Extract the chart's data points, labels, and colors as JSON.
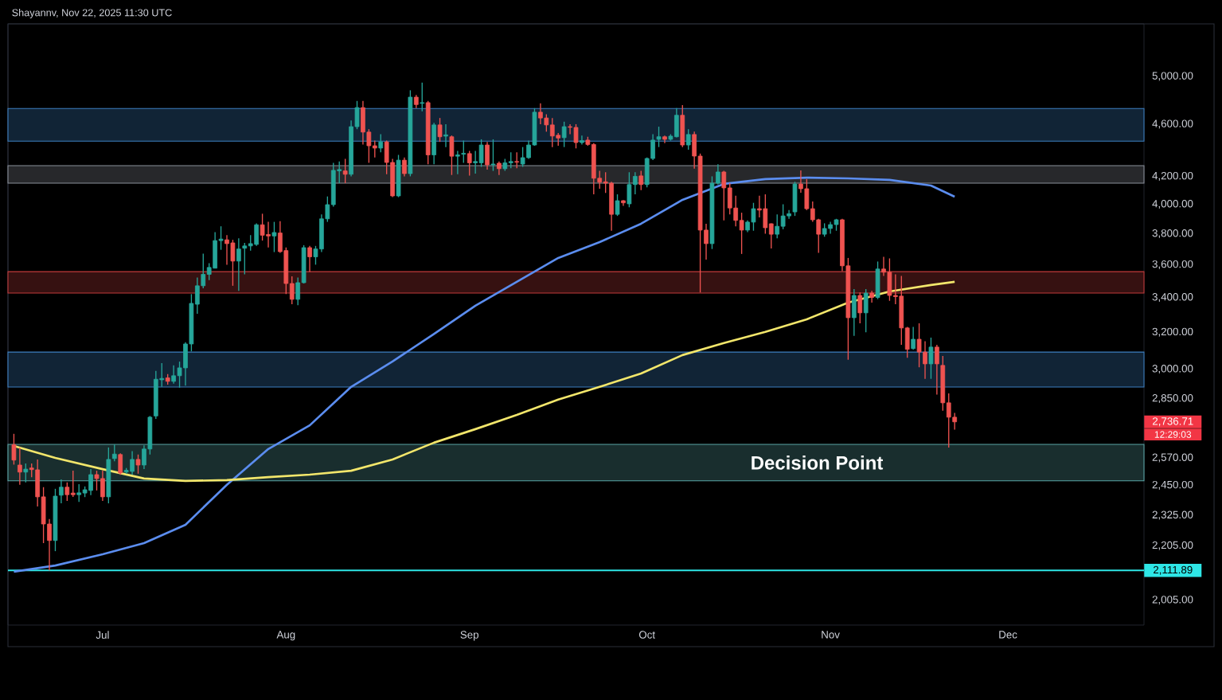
{
  "chart_data": {
    "type": "candlestick",
    "annotations": [
      "Shayannv, Nov 22, 2025 11:30 UTC",
      "2,736.71",
      "12:29:03"
    ],
    "x": [
      "2025-06-16",
      "2025-06-17",
      "2025-06-18",
      "2025-06-19",
      "2025-06-20",
      "2025-06-21",
      "2025-06-22",
      "2025-06-23",
      "2025-06-24",
      "2025-06-25",
      "2025-06-26",
      "2025-06-27",
      "2025-06-28",
      "2025-06-29",
      "2025-06-30",
      "2025-07-01",
      "2025-07-02",
      "2025-07-03",
      "2025-07-04",
      "2025-07-05",
      "2025-07-06",
      "2025-07-07",
      "2025-07-08",
      "2025-07-09",
      "2025-07-10",
      "2025-07-11",
      "2025-07-12",
      "2025-07-13",
      "2025-07-14",
      "2025-07-15",
      "2025-07-16",
      "2025-07-17",
      "2025-07-18",
      "2025-07-19",
      "2025-07-20",
      "2025-07-21",
      "2025-07-22",
      "2025-07-23",
      "2025-07-24",
      "2025-07-25",
      "2025-07-26",
      "2025-07-27",
      "2025-07-28",
      "2025-07-29",
      "2025-07-30",
      "2025-07-31",
      "2025-08-01",
      "2025-08-02",
      "2025-08-03",
      "2025-08-04",
      "2025-08-05",
      "2025-08-06",
      "2025-08-07",
      "2025-08-08",
      "2025-08-09",
      "2025-08-10",
      "2025-08-11",
      "2025-08-12",
      "2025-08-13",
      "2025-08-14",
      "2025-08-15",
      "2025-08-16",
      "2025-08-17",
      "2025-08-18",
      "2025-08-19",
      "2025-08-20",
      "2025-08-21",
      "2025-08-22",
      "2025-08-23",
      "2025-08-24",
      "2025-08-25",
      "2025-08-26",
      "2025-08-27",
      "2025-08-28",
      "2025-08-29",
      "2025-08-30",
      "2025-08-31",
      "2025-09-01",
      "2025-09-02",
      "2025-09-03",
      "2025-09-04",
      "2025-09-05",
      "2025-09-06",
      "2025-09-07",
      "2025-09-08",
      "2025-09-09",
      "2025-09-10",
      "2025-09-11",
      "2025-09-12",
      "2025-09-13",
      "2025-09-14",
      "2025-09-15",
      "2025-09-16",
      "2025-09-17",
      "2025-09-18",
      "2025-09-19",
      "2025-09-20",
      "2025-09-21",
      "2025-09-22",
      "2025-09-23",
      "2025-09-24",
      "2025-09-25",
      "2025-09-26",
      "2025-09-27",
      "2025-09-28",
      "2025-09-29",
      "2025-09-30",
      "2025-10-01",
      "2025-10-02",
      "2025-10-03",
      "2025-10-04",
      "2025-10-05",
      "2025-10-06",
      "2025-10-07",
      "2025-10-08",
      "2025-10-09",
      "2025-10-10",
      "2025-10-11",
      "2025-10-12",
      "2025-10-13",
      "2025-10-14",
      "2025-10-15",
      "2025-10-16",
      "2025-10-17",
      "2025-10-18",
      "2025-10-19",
      "2025-10-20",
      "2025-10-21",
      "2025-10-22",
      "2025-10-23",
      "2025-10-24",
      "2025-10-25",
      "2025-10-26",
      "2025-10-27",
      "2025-10-28",
      "2025-10-29",
      "2025-10-30",
      "2025-10-31",
      "2025-11-01",
      "2025-11-02",
      "2025-11-03",
      "2025-11-04",
      "2025-11-05",
      "2025-11-06",
      "2025-11-07",
      "2025-11-08",
      "2025-11-09",
      "2025-11-10",
      "2025-11-11",
      "2025-11-12",
      "2025-11-13",
      "2025-11-14",
      "2025-11-15",
      "2025-11-16",
      "2025-11-17",
      "2025-11-18",
      "2025-11-19",
      "2025-11-20",
      "2025-11-21",
      "2025-11-22"
    ],
    "ohlc": [
      [
        2630,
        2680,
        2540,
        2560
      ],
      [
        2538,
        2617,
        2452,
        2507
      ],
      [
        2507,
        2545,
        2462,
        2520
      ],
      [
        2525,
        2545,
        2485,
        2518
      ],
      [
        2517,
        2563,
        2361,
        2401
      ],
      [
        2401,
        2442,
        2215,
        2290
      ],
      [
        2290,
        2310,
        2112,
        2225
      ],
      [
        2225,
        2435,
        2184,
        2404
      ],
      [
        2408,
        2475,
        2374,
        2442
      ],
      [
        2442,
        2462,
        2384,
        2410
      ],
      [
        2417,
        2513,
        2401,
        2410
      ],
      [
        2410,
        2455,
        2380,
        2418
      ],
      [
        2417,
        2445,
        2400,
        2431
      ],
      [
        2428,
        2520,
        2408,
        2496
      ],
      [
        2496,
        2513,
        2428,
        2479
      ],
      [
        2479,
        2513,
        2384,
        2401
      ],
      [
        2401,
        2617,
        2374,
        2563
      ],
      [
        2567,
        2630,
        2555,
        2587
      ],
      [
        2585,
        2590,
        2495,
        2503
      ],
      [
        2507,
        2525,
        2500,
        2515
      ],
      [
        2510,
        2600,
        2496,
        2563
      ],
      [
        2563,
        2585,
        2500,
        2538
      ],
      [
        2538,
        2627,
        2520,
        2610
      ],
      [
        2610,
        2765,
        2585,
        2759
      ],
      [
        2765,
        2991,
        2751,
        2948
      ],
      [
        2945,
        3032,
        2909,
        2952
      ],
      [
        2955,
        2975,
        2920,
        2937
      ],
      [
        2937,
        3020,
        2925,
        2966
      ],
      [
        2966,
        3040,
        2905,
        3007
      ],
      [
        3007,
        3145,
        2915,
        3135
      ],
      [
        3135,
        3420,
        3095,
        3365
      ],
      [
        3360,
        3520,
        3305,
        3470
      ],
      [
        3470,
        3670,
        3455,
        3540
      ],
      [
        3540,
        3610,
        3505,
        3583
      ],
      [
        3578,
        3810,
        3578,
        3755
      ],
      [
        3755,
        3850,
        3695,
        3765
      ],
      [
        3760,
        3790,
        3600,
        3735
      ],
      [
        3740,
        3760,
        3470,
        3623
      ],
      [
        3623,
        3770,
        3440,
        3700
      ],
      [
        3705,
        3740,
        3540,
        3720
      ],
      [
        3720,
        3790,
        3690,
        3735
      ],
      [
        3730,
        3870,
        3720,
        3860
      ],
      [
        3860,
        3935,
        3755,
        3790
      ],
      [
        3795,
        3880,
        3710,
        3785
      ],
      [
        3785,
        3880,
        3680,
        3808
      ],
      [
        3805,
        3885,
        3675,
        3683
      ],
      [
        3690,
        3710,
        3420,
        3484
      ],
      [
        3484,
        3528,
        3360,
        3389
      ],
      [
        3389,
        3520,
        3355,
        3489
      ],
      [
        3489,
        3725,
        3484,
        3709
      ],
      [
        3709,
        3720,
        3555,
        3650
      ],
      [
        3650,
        3720,
        3600,
        3700
      ],
      [
        3700,
        3930,
        3680,
        3900
      ],
      [
        3900,
        4055,
        3880,
        3998
      ],
      [
        3998,
        4300,
        3985,
        4244
      ],
      [
        4240,
        4310,
        4150,
        4250
      ],
      [
        4240,
        4330,
        4150,
        4215
      ],
      [
        4215,
        4630,
        4200,
        4580
      ],
      [
        4580,
        4790,
        4560,
        4735
      ],
      [
        4735,
        4790,
        4440,
        4537
      ],
      [
        4537,
        4560,
        4300,
        4430
      ],
      [
        4430,
        4470,
        4340,
        4412
      ],
      [
        4412,
        4520,
        4380,
        4460
      ],
      [
        4460,
        4470,
        4215,
        4303
      ],
      [
        4303,
        4330,
        4050,
        4059
      ],
      [
        4059,
        4360,
        4050,
        4320
      ],
      [
        4320,
        4340,
        4200,
        4220
      ],
      [
        4220,
        4880,
        4200,
        4822
      ],
      [
        4822,
        4840,
        4730,
        4760
      ],
      [
        4770,
        4945,
        4705,
        4776
      ],
      [
        4776,
        4790,
        4290,
        4360
      ],
      [
        4360,
        4610,
        4290,
        4594
      ],
      [
        4594,
        4650,
        4460,
        4500
      ],
      [
        4505,
        4600,
        4420,
        4515
      ],
      [
        4500,
        4510,
        4210,
        4350
      ],
      [
        4350,
        4390,
        4215,
        4360
      ],
      [
        4365,
        4470,
        4300,
        4372
      ],
      [
        4370,
        4390,
        4205,
        4300
      ],
      [
        4300,
        4390,
        4220,
        4310
      ],
      [
        4300,
        4480,
        4270,
        4436
      ],
      [
        4436,
        4460,
        4250,
        4285
      ],
      [
        4285,
        4480,
        4240,
        4291
      ],
      [
        4297,
        4310,
        4210,
        4256
      ],
      [
        4256,
        4330,
        4240,
        4300
      ],
      [
        4300,
        4380,
        4260,
        4310
      ],
      [
        4310,
        4380,
        4260,
        4305
      ],
      [
        4291,
        4420,
        4270,
        4339
      ],
      [
        4339,
        4470,
        4330,
        4436
      ],
      [
        4436,
        4730,
        4430,
        4697
      ],
      [
        4697,
        4770,
        4600,
        4650
      ],
      [
        4650,
        4680,
        4540,
        4594
      ],
      [
        4594,
        4650,
        4420,
        4506
      ],
      [
        4512,
        4530,
        4430,
        4490
      ],
      [
        4493,
        4620,
        4420,
        4580
      ],
      [
        4580,
        4600,
        4520,
        4575
      ],
      [
        4574,
        4600,
        4410,
        4455
      ],
      [
        4455,
        4510,
        4440,
        4470
      ],
      [
        4474,
        4500,
        4430,
        4440
      ],
      [
        4440,
        4450,
        4070,
        4186
      ],
      [
        4186,
        4240,
        4110,
        4157
      ],
      [
        4160,
        4230,
        4080,
        4150
      ],
      [
        4150,
        4160,
        3820,
        3931
      ],
      [
        3931,
        4070,
        3920,
        4025
      ],
      [
        4025,
        4030,
        3990,
        4010
      ],
      [
        4003,
        4230,
        3980,
        4140
      ],
      [
        4140,
        4230,
        4070,
        4200
      ],
      [
        4203,
        4240,
        4100,
        4140
      ],
      [
        4140,
        4340,
        4120,
        4333
      ],
      [
        4333,
        4520,
        4320,
        4474
      ],
      [
        4480,
        4580,
        4420,
        4500
      ],
      [
        4500,
        4510,
        4450,
        4480
      ],
      [
        4480,
        4520,
        4470,
        4505
      ],
      [
        4500,
        4730,
        4495,
        4672
      ],
      [
        4672,
        4755,
        4420,
        4436
      ],
      [
        4436,
        4560,
        4400,
        4518
      ],
      [
        4518,
        4540,
        4256,
        4351
      ],
      [
        4351,
        4370,
        3430,
        3824
      ],
      [
        3824,
        3867,
        3633,
        3735
      ],
      [
        3735,
        4200,
        3700,
        4150
      ],
      [
        4150,
        4290,
        4140,
        4232
      ],
      [
        4232,
        4240,
        3890,
        4116
      ],
      [
        4116,
        4150,
        3930,
        3975
      ],
      [
        3975,
        4060,
        3850,
        3890
      ],
      [
        3890,
        3942,
        3668,
        3824
      ],
      [
        3824,
        3890,
        3810,
        3878
      ],
      [
        3878,
        4010,
        3820,
        3970
      ],
      [
        3970,
        4060,
        3910,
        3960
      ],
      [
        3970,
        4070,
        3800,
        3840
      ],
      [
        3867,
        3870,
        3704,
        3797
      ],
      [
        3797,
        3930,
        3770,
        3850
      ],
      [
        3850,
        4000,
        3830,
        3920
      ],
      [
        3920,
        3960,
        3900,
        3935
      ],
      [
        3948,
        4160,
        3920,
        4144
      ],
      [
        4144,
        4244,
        4082,
        4110
      ],
      [
        4110,
        4180,
        3960,
        3970
      ],
      [
        3970,
        4020,
        3880,
        3894
      ],
      [
        3894,
        3900,
        3676,
        3797
      ],
      [
        3797,
        3870,
        3780,
        3835
      ],
      [
        3835,
        3880,
        3800,
        3861
      ],
      [
        3861,
        3900,
        3820,
        3894
      ],
      [
        3894,
        3900,
        3560,
        3593
      ],
      [
        3593,
        3643,
        3050,
        3282
      ],
      [
        3282,
        3450,
        3180,
        3412
      ],
      [
        3412,
        3430,
        3250,
        3310
      ],
      [
        3310,
        3450,
        3200,
        3426
      ],
      [
        3426,
        3440,
        3370,
        3400
      ],
      [
        3400,
        3620,
        3390,
        3573
      ],
      [
        3573,
        3650,
        3530,
        3553
      ],
      [
        3553,
        3640,
        3380,
        3412
      ],
      [
        3412,
        3540,
        3360,
        3405
      ],
      [
        3408,
        3530,
        3130,
        3224
      ],
      [
        3224,
        3230,
        3060,
        3106
      ],
      [
        3110,
        3230,
        3105,
        3161
      ],
      [
        3161,
        3250,
        3010,
        3091
      ],
      [
        3091,
        3150,
        2950,
        3028
      ],
      [
        3028,
        3170,
        2950,
        3118
      ],
      [
        3118,
        3130,
        2870,
        3028
      ],
      [
        3020,
        3070,
        2790,
        2829
      ],
      [
        2829,
        2876,
        2617,
        2759
      ],
      [
        2759,
        2780,
        2700,
        2736.71
      ]
    ],
    "series": [
      {
        "type": "line",
        "color": "#5b8def",
        "x": [
          "2025-06-16",
          "2025-06-23",
          "2025-07-01",
          "2025-07-08",
          "2025-07-15",
          "2025-07-22",
          "2025-07-29",
          "2025-08-05",
          "2025-08-12",
          "2025-08-19",
          "2025-08-26",
          "2025-09-02",
          "2025-09-09",
          "2025-09-16",
          "2025-09-23",
          "2025-09-30",
          "2025-10-07",
          "2025-10-14",
          "2025-10-21",
          "2025-10-28",
          "2025-11-04",
          "2025-11-11",
          "2025-11-18",
          "2025-11-22"
        ],
        "values": [
          2107,
          2130,
          2172,
          2215,
          2287,
          2452,
          2610,
          2720,
          2909,
          3041,
          3190,
          3352,
          3494,
          3643,
          3745,
          3867,
          4031,
          4145,
          4180,
          4190,
          4185,
          4174,
          4133,
          4053
        ]
      },
      {
        "type": "line",
        "color": "#f2e66b",
        "x": [
          "2025-06-16",
          "2025-06-23",
          "2025-07-01",
          "2025-07-08",
          "2025-07-15",
          "2025-07-22",
          "2025-07-29",
          "2025-08-05",
          "2025-08-12",
          "2025-08-19",
          "2025-08-26",
          "2025-09-02",
          "2025-09-09",
          "2025-09-16",
          "2025-09-23",
          "2025-09-30",
          "2025-10-07",
          "2025-10-14",
          "2025-10-21",
          "2025-10-28",
          "2025-11-04",
          "2025-11-11",
          "2025-11-18",
          "2025-11-22"
        ],
        "values": [
          2624,
          2570,
          2520,
          2479,
          2469,
          2472,
          2485,
          2496,
          2513,
          2563,
          2639,
          2702,
          2770,
          2845,
          2909,
          2978,
          3075,
          3140,
          3202,
          3273,
          3370,
          3436,
          3475,
          3494
        ]
      }
    ],
    "xlim": [
      "2025-06-15",
      "2025-12-24"
    ],
    "xticks": [
      {
        "value": "2025-07-01",
        "label": "Jul"
      },
      {
        "value": "2025-08-01",
        "label": "Aug"
      },
      {
        "value": "2025-09-01",
        "label": "Sep"
      },
      {
        "value": "2025-10-01",
        "label": "Oct"
      },
      {
        "value": "2025-11-01",
        "label": "Nov"
      },
      {
        "value": "2025-12-01",
        "label": "Dec"
      }
    ],
    "ylim": [
      1920,
      5480
    ],
    "log": true,
    "yticks": [
      {
        "value": 2005,
        "label": "2,005.00"
      },
      {
        "value": 2205,
        "label": "2,205.00"
      },
      {
        "value": 2325,
        "label": "2,325.00"
      },
      {
        "value": 2450,
        "label": "2,450.00"
      },
      {
        "value": 2570,
        "label": "2,570.00"
      },
      {
        "value": 2850,
        "label": "2,850.00"
      },
      {
        "value": 3000,
        "label": "3,000.00"
      },
      {
        "value": 3200,
        "label": "3,200.00"
      },
      {
        "value": 3400,
        "label": "3,400.00"
      },
      {
        "value": 3600,
        "label": "3,600.00"
      },
      {
        "value": 3800,
        "label": "3,800.00"
      },
      {
        "value": 4000,
        "label": "4,000.00"
      },
      {
        "value": 4200,
        "label": "4,200.00"
      },
      {
        "value": 4600,
        "label": "4,600.00"
      },
      {
        "value": 5000,
        "label": "5,000.00"
      }
    ],
    "bands": [
      {
        "axis": "y",
        "from": 4466,
        "to": 4728,
        "color": "#3d7fc0"
      },
      {
        "axis": "y",
        "from": 4150,
        "to": 4279,
        "color": "#8a8f99"
      },
      {
        "axis": "y",
        "from": 3426,
        "to": 3557,
        "color": "#c23b3b"
      },
      {
        "axis": "y",
        "from": 2908,
        "to": 3091,
        "color": "#3d7fc0"
      },
      {
        "axis": "y",
        "from": 2469,
        "to": 2631,
        "color": "#5aa6a6",
        "label": "Decision Point"
      }
    ],
    "ref_lines": [
      {
        "axis": "y",
        "value": 2111.89,
        "label": "2,111.89",
        "color": "#2ee6e6"
      }
    ]
  }
}
